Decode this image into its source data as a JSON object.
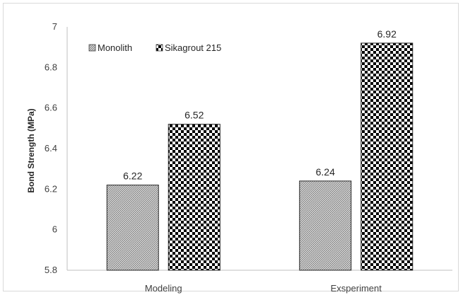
{
  "chart_data": {
    "type": "bar",
    "categories": [
      "Modeling",
      "Exsperiment"
    ],
    "series": [
      {
        "name": "Monolith",
        "values": [
          6.22,
          6.24
        ],
        "pattern": "fine-hatch",
        "color": "#7f7f7f"
      },
      {
        "name": "Sikagrout 215",
        "values": [
          6.52,
          6.92
        ],
        "pattern": "checkerboard",
        "color": "#000000"
      }
    ],
    "data_labels": [
      [
        "6.22",
        "6.24"
      ],
      [
        "6.52",
        "6.92"
      ]
    ],
    "ylabel": "Bond Strength (MPa)",
    "xlabel": "",
    "title": "",
    "ylim": [
      5.8,
      7.0
    ],
    "yticks": [
      "5.8",
      "6",
      "6.2",
      "6.4",
      "6.6",
      "6.8",
      "7"
    ],
    "ytick_values": [
      5.8,
      6.0,
      6.2,
      6.4,
      6.6,
      6.8,
      7.0
    ],
    "grid": false,
    "legend_position": "top-left"
  }
}
